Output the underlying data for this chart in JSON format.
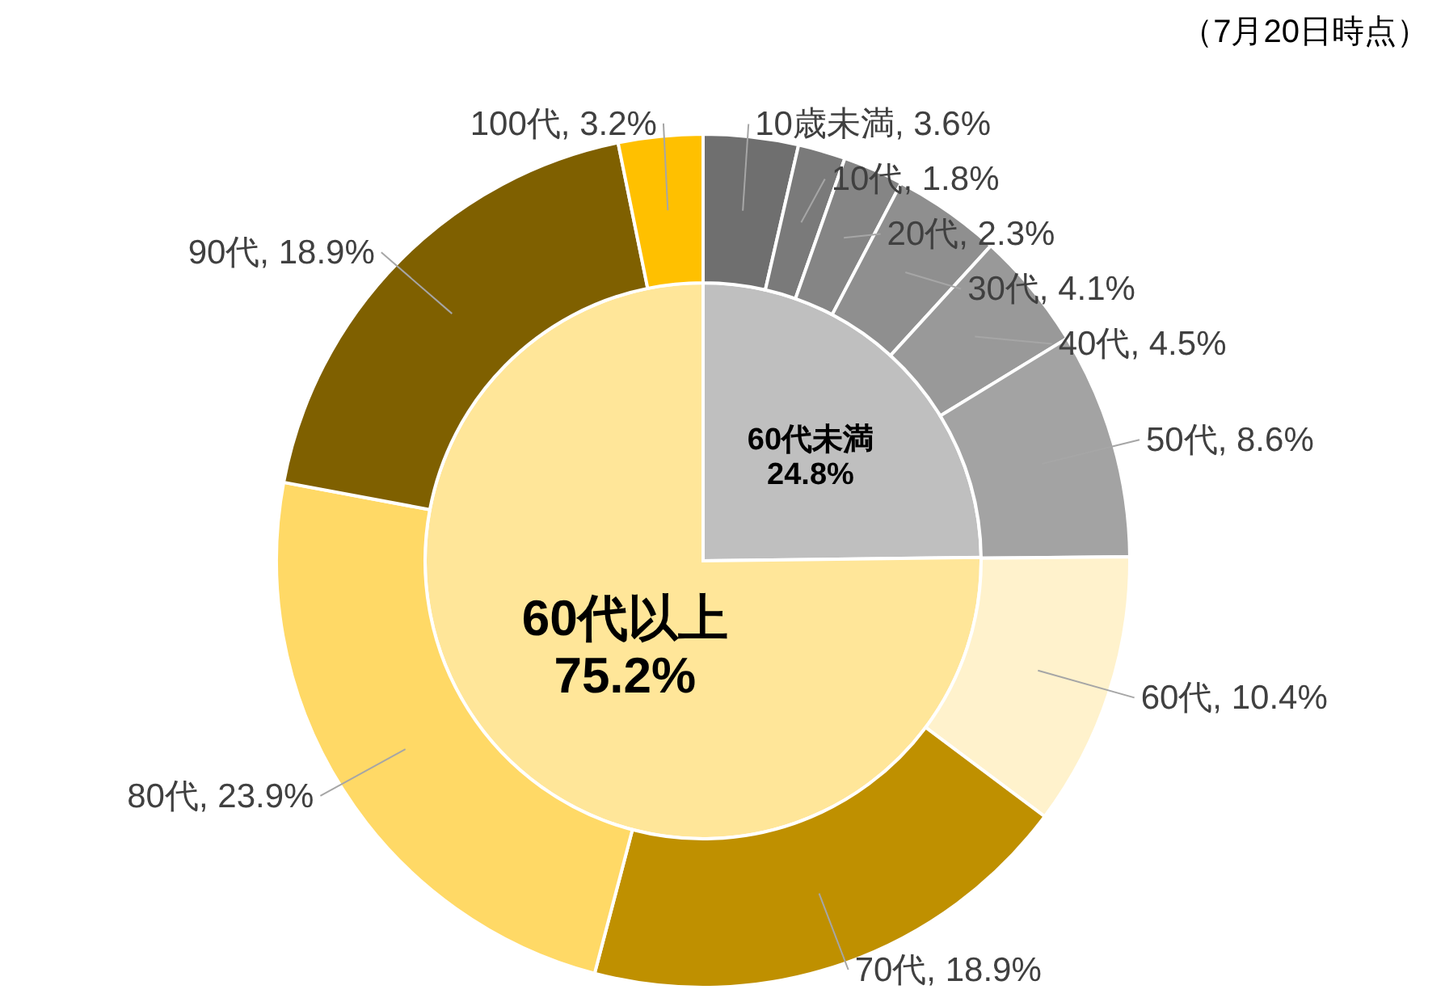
{
  "chart_data": [
    {
      "type": "pie",
      "categories": [
        "60代未満",
        "60代以上"
      ],
      "values": [
        24.8,
        75.2
      ],
      "colors": [
        "#bfbfbf",
        "#ffe699"
      ],
      "value_labels": [
        "24.8%",
        "75.2%"
      ]
    },
    {
      "type": "donut",
      "categories": [
        "10歳未満",
        "10代",
        "20代",
        "30代",
        "40代",
        "50代",
        "60代",
        "70代",
        "80代",
        "90代",
        "100代"
      ],
      "values": [
        3.6,
        1.8,
        2.3,
        4.1,
        4.5,
        8.6,
        10.4,
        18.9,
        23.9,
        18.9,
        3.2
      ],
      "colors": [
        "#6f6f6f",
        "#7a7a7a",
        "#858585",
        "#8f8f8f",
        "#999999",
        "#a3a3a3",
        "#fff2cc",
        "#bf9000",
        "#ffd966",
        "#7f6000",
        "#ffc000"
      ],
      "value_labels": [
        ", 3.6%",
        ", 1.8%",
        ", 2.3%",
        ", 4.1%",
        ", 4.5%",
        ", 8.6%",
        ", 10.4%",
        ", 18.9%",
        ", 23.9%",
        ", 18.9%",
        ", 3.2%"
      ],
      "annotations": [
        "（7月20日時点）"
      ]
    }
  ]
}
